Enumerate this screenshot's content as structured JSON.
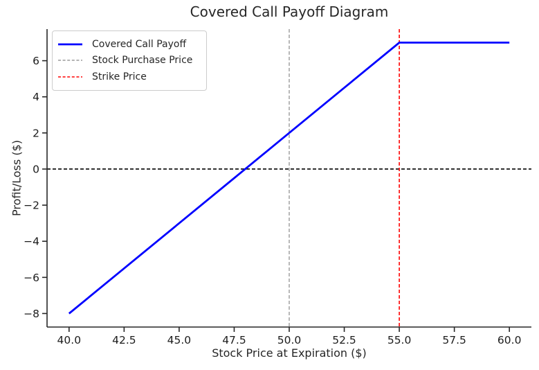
{
  "chart_data": {
    "type": "line",
    "title": "Covered Call Payoff Diagram",
    "xlabel": "Stock Price at Expiration ($)",
    "ylabel": "Profit/Loss ($)",
    "xlim": [
      39,
      61
    ],
    "ylim": [
      -8.75,
      7.75
    ],
    "grid": false,
    "legend_position": "upper left",
    "x_ticks": [
      40.0,
      42.5,
      45.0,
      47.5,
      50.0,
      52.5,
      55.0,
      57.5,
      60.0
    ],
    "x_tick_labels": [
      "40.0",
      "42.5",
      "45.0",
      "47.5",
      "50.0",
      "52.5",
      "55.0",
      "57.5",
      "60.0"
    ],
    "y_ticks": [
      -8,
      -6,
      -4,
      -2,
      0,
      2,
      4,
      6
    ],
    "y_tick_labels": [
      "−8",
      "−6",
      "−4",
      "−2",
      "0",
      "2",
      "4",
      "6"
    ],
    "series": [
      {
        "name": "Covered Call Payoff",
        "color": "#0000ff",
        "style": "solid",
        "line_width": 2.8,
        "x": [
          40.0,
          42.5,
          45.0,
          47.5,
          50.0,
          52.5,
          55.0,
          57.5,
          60.0
        ],
        "y": [
          -8.0,
          -5.5,
          -3.0,
          -0.5,
          2.0,
          4.5,
          7.0,
          7.0,
          7.0
        ]
      }
    ],
    "reference_lines": [
      {
        "name": "zero-profit-line",
        "orientation": "horizontal",
        "value": 0,
        "color": "#000000",
        "style": "dashed",
        "line_width": 1.6
      },
      {
        "name": "stock-purchase-price-line",
        "orientation": "vertical",
        "value": 50,
        "color": "#9a9a9a",
        "style": "dashed",
        "line_width": 1.4
      },
      {
        "name": "strike-price-line",
        "orientation": "vertical",
        "value": 55,
        "color": "#ff0000",
        "style": "dashed",
        "line_width": 1.6
      }
    ]
  },
  "legend": {
    "items": [
      {
        "label": "Covered Call Payoff",
        "color": "#0000ff",
        "dash": "solid",
        "line_width": 2.8
      },
      {
        "label": "Stock Purchase Price",
        "color": "#9a9a9a",
        "dash": "dashed",
        "line_width": 1.4
      },
      {
        "label": "Strike Price",
        "color": "#ff0000",
        "dash": "dashed",
        "line_width": 1.6
      }
    ]
  },
  "colors": {
    "axes": "#262626",
    "tick_text": "#1c1c1c",
    "background": "#ffffff"
  }
}
